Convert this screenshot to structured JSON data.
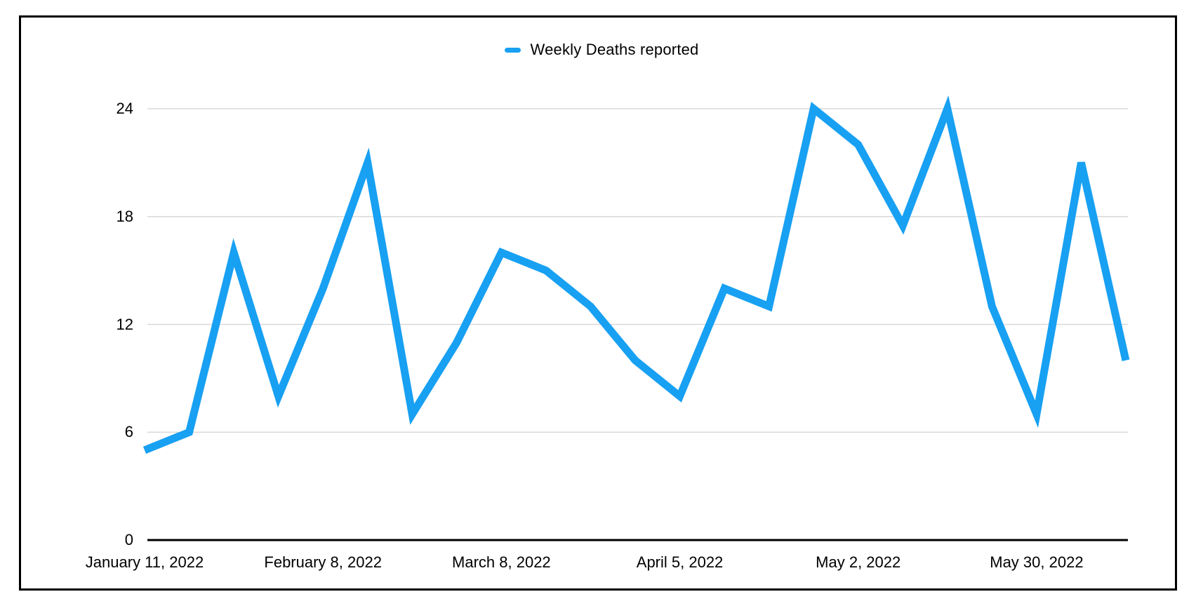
{
  "legend": {
    "label": "Weekly Deaths reported"
  },
  "chart_data": {
    "type": "line",
    "title": "",
    "series": [
      {
        "name": "Weekly Deaths reported",
        "values": [
          5,
          6,
          16,
          8,
          14,
          21,
          7,
          11,
          16,
          15,
          13,
          10,
          8,
          14,
          13,
          24,
          22,
          17.5,
          24,
          13,
          7,
          21,
          10
        ]
      }
    ],
    "x_unit": "weeks",
    "x_tick_labels": [
      "January 11, 2022",
      "February 8, 2022",
      "March 8, 2022",
      "April 5, 2022",
      "May 2, 2022",
      "May 30, 2022"
    ],
    "x_tick_week_positions": [
      0,
      4,
      8,
      12,
      16,
      20
    ],
    "y_ticks": [
      "0",
      "6",
      "12",
      "18",
      "24"
    ],
    "y_tick_values": [
      0,
      6,
      12,
      18,
      24
    ],
    "ylim": [
      0,
      24
    ],
    "grid": "horizontal",
    "legend_position": "top",
    "colors": {
      "line": "#18A0F2",
      "gridline": "#D9D9D9",
      "axis": "#000000",
      "text": "#000000"
    }
  }
}
